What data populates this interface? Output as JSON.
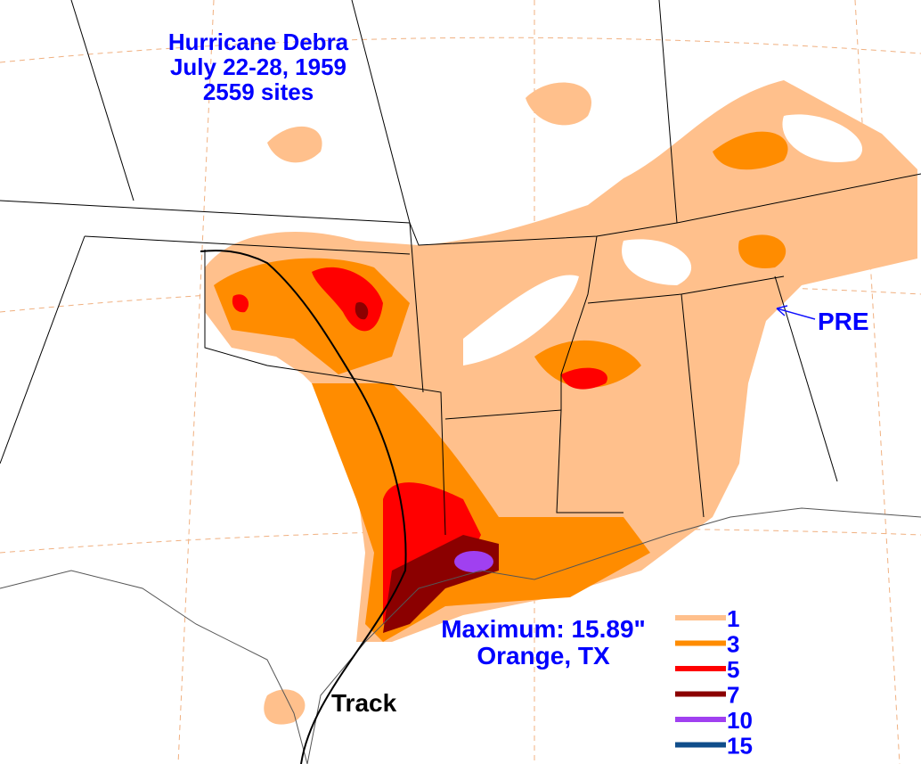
{
  "title": {
    "lines": [
      "Hurricane Debra",
      "July 22-28, 1959",
      "2559 sites"
    ]
  },
  "annotations": {
    "pre": "PRE",
    "track": "Track",
    "maximum": "Maximum:  15.89\"",
    "location": "Orange, TX"
  },
  "legend": {
    "items": [
      {
        "value": 1,
        "color": "#ffc08c"
      },
      {
        "value": 3,
        "color": "#ff8c00"
      },
      {
        "value": 5,
        "color": "#ff0000"
      },
      {
        "value": 7,
        "color": "#8b0000"
      },
      {
        "value": 10,
        "color": "#a040f0"
      },
      {
        "value": 15,
        "color": "#104e8b"
      }
    ]
  }
}
